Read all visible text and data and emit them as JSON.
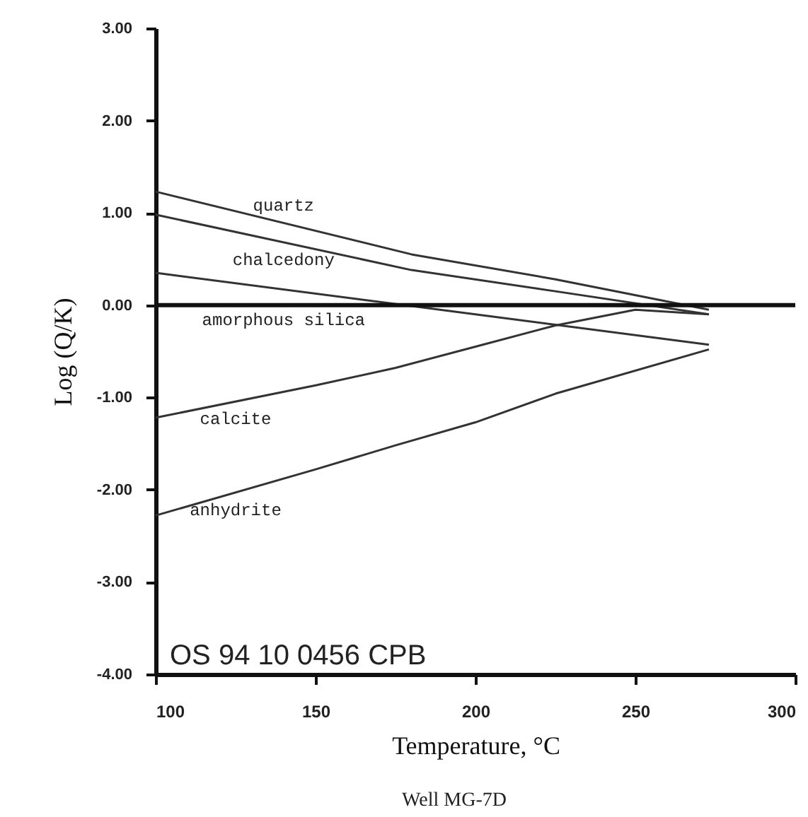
{
  "chart_data": {
    "type": "line",
    "xlabel": "Temperature, °C",
    "ylabel": "Log (Q/K)",
    "annotations": [
      "OS 94 10 0456 CPB",
      "Well MG-7D"
    ],
    "xlim": [
      100,
      300
    ],
    "xticks": [
      100,
      150,
      200,
      250,
      300
    ],
    "ylim": [
      -4,
      3
    ],
    "yticks": [
      {
        "value": 3,
        "label": "3.00"
      },
      {
        "value": 2,
        "label": "2.00"
      },
      {
        "value": 1,
        "label": "1.00"
      },
      {
        "value": 0,
        "label": "0.00"
      },
      {
        "value": -1,
        "label": "-1.00"
      },
      {
        "value": -2,
        "label": "-2.00"
      },
      {
        "value": -3,
        "label": "-3.00"
      },
      {
        "value": -4,
        "label": "-4.00"
      }
    ],
    "ref_lines": [
      {
        "axis": "y",
        "value": 0,
        "color": "#111111"
      }
    ],
    "grid": false,
    "marker": "none",
    "line_style": "solid",
    "series": [
      {
        "name": "quartz",
        "color": "#333333",
        "x": [
          100,
          180,
          225,
          273
        ],
        "values": [
          1.23,
          0.55,
          0.28,
          -0.05
        ]
      },
      {
        "name": "chalcedony",
        "color": "#333333",
        "x": [
          100,
          180,
          225,
          273
        ],
        "values": [
          0.98,
          0.38,
          0.15,
          -0.1
        ]
      },
      {
        "name": "amorphous silica",
        "color": "#333333",
        "x": [
          100,
          180,
          273
        ],
        "values": [
          0.35,
          -0.01,
          -0.43
        ]
      },
      {
        "name": "calcite",
        "color": "#333333",
        "x": [
          100,
          150,
          175,
          200,
          225,
          250,
          273
        ],
        "values": [
          -1.22,
          -0.87,
          -0.68,
          -0.45,
          -0.22,
          -0.05,
          -0.1
        ]
      },
      {
        "name": "anhydrite",
        "color": "#333333",
        "x": [
          100,
          150,
          175,
          200,
          225,
          273
        ],
        "values": [
          -2.28,
          -1.78,
          -1.52,
          -1.27,
          -0.96,
          -0.48
        ]
      }
    ]
  }
}
